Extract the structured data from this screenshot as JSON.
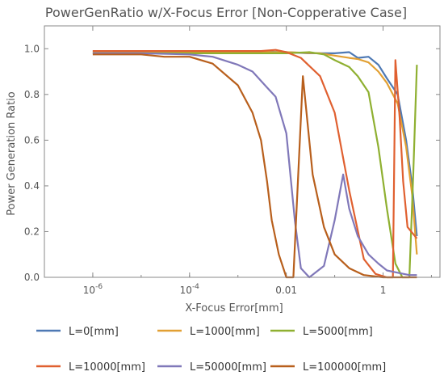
{
  "chart_data": {
    "type": "line",
    "title": "PowerGenRatio w/X-Focus Error [Non-Copperative Case]",
    "xlabel": "X-Focus Error[mm]",
    "ylabel": "Power Generation Ratio",
    "xscale": "log",
    "xlim": [
      1e-07,
      15
    ],
    "ylim": [
      0,
      1.1
    ],
    "x_ticks": [
      {
        "value": 1e-06,
        "label": "10^-6"
      },
      {
        "value": 0.0001,
        "label": "10^-4"
      },
      {
        "value": 0.01,
        "label": "0.01"
      },
      {
        "value": 1,
        "label": "1"
      }
    ],
    "y_ticks": [
      {
        "value": 0.0,
        "label": "0.0"
      },
      {
        "value": 0.2,
        "label": "0.2"
      },
      {
        "value": 0.4,
        "label": "0.4"
      },
      {
        "value": 0.6,
        "label": "0.6"
      },
      {
        "value": 0.8,
        "label": "0.8"
      },
      {
        "value": 1.0,
        "label": "1.0"
      }
    ],
    "grid": false,
    "legend_position": "bottom",
    "series": [
      {
        "name": "L=0[mm]",
        "color": "#4e79b4",
        "points": [
          [
            1e-06,
            0.99
          ],
          [
            1e-05,
            0.99
          ],
          [
            0.0001,
            0.99
          ],
          [
            0.001,
            0.99
          ],
          [
            0.01,
            0.985
          ],
          [
            0.03,
            0.98
          ],
          [
            0.1,
            0.98
          ],
          [
            0.2,
            0.985
          ],
          [
            0.3,
            0.96
          ],
          [
            0.5,
            0.965
          ],
          [
            0.8,
            0.93
          ],
          [
            1.2,
            0.87
          ],
          [
            2,
            0.8
          ],
          [
            3,
            0.6
          ],
          [
            4,
            0.4
          ],
          [
            5,
            0.18
          ]
        ]
      },
      {
        "name": "L=1000[mm]",
        "color": "#e2a033",
        "points": [
          [
            1e-06,
            0.985
          ],
          [
            1e-05,
            0.985
          ],
          [
            0.0001,
            0.985
          ],
          [
            0.001,
            0.985
          ],
          [
            0.01,
            0.985
          ],
          [
            0.05,
            0.98
          ],
          [
            0.1,
            0.97
          ],
          [
            0.2,
            0.96
          ],
          [
            0.3,
            0.955
          ],
          [
            0.5,
            0.94
          ],
          [
            0.8,
            0.9
          ],
          [
            1.2,
            0.85
          ],
          [
            2,
            0.76
          ],
          [
            3,
            0.57
          ],
          [
            4,
            0.36
          ],
          [
            5,
            0.1
          ]
        ]
      },
      {
        "name": "L=5000[mm]",
        "color": "#8fb031",
        "points": [
          [
            1e-06,
            0.98
          ],
          [
            1e-05,
            0.98
          ],
          [
            0.0001,
            0.98
          ],
          [
            0.001,
            0.98
          ],
          [
            0.01,
            0.98
          ],
          [
            0.03,
            0.985
          ],
          [
            0.06,
            0.975
          ],
          [
            0.1,
            0.95
          ],
          [
            0.2,
            0.92
          ],
          [
            0.3,
            0.88
          ],
          [
            0.5,
            0.81
          ],
          [
            0.8,
            0.57
          ],
          [
            1.2,
            0.3
          ],
          [
            1.8,
            0.06
          ],
          [
            2.5,
            0.0
          ],
          [
            3.5,
            0.0
          ],
          [
            4.2,
            0.45
          ],
          [
            5,
            0.93
          ]
        ]
      },
      {
        "name": "L=10000[mm]",
        "color": "#e06030",
        "points": [
          [
            1e-06,
            0.99
          ],
          [
            1e-05,
            0.99
          ],
          [
            0.0001,
            0.99
          ],
          [
            0.001,
            0.99
          ],
          [
            0.003,
            0.99
          ],
          [
            0.006,
            0.995
          ],
          [
            0.01,
            0.985
          ],
          [
            0.02,
            0.96
          ],
          [
            0.05,
            0.88
          ],
          [
            0.1,
            0.72
          ],
          [
            0.2,
            0.38
          ],
          [
            0.4,
            0.08
          ],
          [
            0.7,
            0.015
          ],
          [
            1.2,
            0.0
          ],
          [
            1.6,
            0.0
          ],
          [
            1.8,
            0.95
          ],
          [
            2.2,
            0.7
          ],
          [
            2.6,
            0.42
          ],
          [
            3.2,
            0.22
          ],
          [
            5,
            0.17
          ]
        ]
      },
      {
        "name": "L=50000[mm]",
        "color": "#8078b9",
        "points": [
          [
            1e-06,
            0.98
          ],
          [
            1e-05,
            0.98
          ],
          [
            0.0001,
            0.975
          ],
          [
            0.0003,
            0.965
          ],
          [
            0.001,
            0.93
          ],
          [
            0.002,
            0.9
          ],
          [
            0.004,
            0.83
          ],
          [
            0.006,
            0.79
          ],
          [
            0.01,
            0.63
          ],
          [
            0.015,
            0.25
          ],
          [
            0.02,
            0.04
          ],
          [
            0.03,
            0.0
          ],
          [
            0.06,
            0.05
          ],
          [
            0.1,
            0.25
          ],
          [
            0.15,
            0.45
          ],
          [
            0.2,
            0.3
          ],
          [
            0.3,
            0.18
          ],
          [
            0.5,
            0.1
          ],
          [
            0.8,
            0.06
          ],
          [
            1.2,
            0.03
          ],
          [
            2,
            0.02
          ],
          [
            3.5,
            0.01
          ],
          [
            5,
            0.01
          ]
        ]
      },
      {
        "name": "L=100000[mm]",
        "color": "#b85f1c",
        "points": [
          [
            1e-06,
            0.975
          ],
          [
            1e-05,
            0.975
          ],
          [
            3e-05,
            0.965
          ],
          [
            0.0001,
            0.965
          ],
          [
            0.0003,
            0.935
          ],
          [
            0.001,
            0.84
          ],
          [
            0.002,
            0.72
          ],
          [
            0.003,
            0.6
          ],
          [
            0.004,
            0.42
          ],
          [
            0.005,
            0.25
          ],
          [
            0.007,
            0.1
          ],
          [
            0.01,
            0.0
          ],
          [
            0.014,
            0.0
          ],
          [
            0.022,
            0.88
          ],
          [
            0.035,
            0.45
          ],
          [
            0.06,
            0.22
          ],
          [
            0.1,
            0.1
          ],
          [
            0.2,
            0.04
          ],
          [
            0.4,
            0.01
          ],
          [
            1,
            0.0
          ],
          [
            2,
            0.0
          ],
          [
            5,
            0.0
          ]
        ]
      }
    ]
  }
}
